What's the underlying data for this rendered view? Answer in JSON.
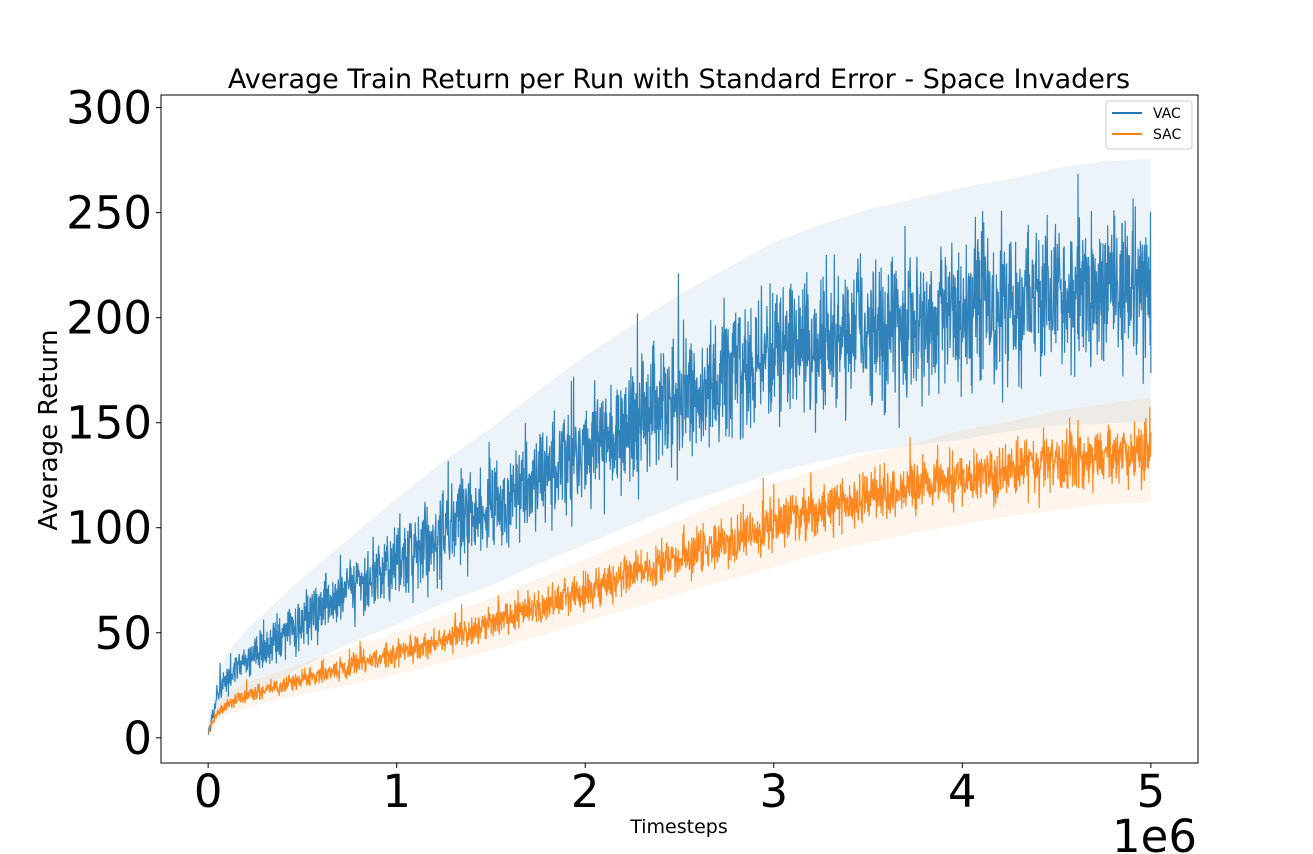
{
  "chart_data": {
    "type": "line",
    "title": "Average Train Return per Run with Standard Error - Space Invaders",
    "xlabel": "Timesteps",
    "ylabel": "Average Return",
    "x_offset_label": "1e6",
    "xlim": [
      -0.25,
      5.25
    ],
    "ylim": [
      -12,
      306
    ],
    "x_ticks": [
      0,
      1,
      2,
      3,
      4,
      5
    ],
    "x_tick_labels": [
      "0",
      "1",
      "2",
      "3",
      "4",
      "5"
    ],
    "y_ticks": [
      0,
      50,
      100,
      150,
      200,
      250,
      300
    ],
    "y_tick_labels": [
      "0",
      "50",
      "100",
      "150",
      "200",
      "250",
      "300"
    ],
    "grid": false,
    "legend_position": "top-right",
    "series": [
      {
        "name": "VAC",
        "color": "#1f77b4",
        "x": [
          0,
          0.05,
          0.1,
          0.2,
          0.3,
          0.5,
          0.75,
          1.0,
          1.25,
          1.5,
          1.75,
          2.0,
          2.25,
          2.5,
          2.75,
          3.0,
          3.25,
          3.5,
          3.75,
          4.0,
          4.25,
          4.5,
          4.75,
          5.0
        ],
        "mean": [
          3,
          20,
          28,
          36,
          42,
          55,
          70,
          84,
          98,
          110,
          124,
          137,
          149,
          161,
          171,
          181,
          188,
          194,
          198,
          202,
          206,
          210,
          212,
          213
        ],
        "spread": [
          2,
          8,
          10,
          12,
          14,
          17,
          20,
          24,
          27,
          30,
          33,
          36,
          38,
          40,
          42,
          44,
          45,
          46,
          47,
          48,
          48,
          49,
          50,
          50
        ]
      },
      {
        "name": "SAC",
        "color": "#ff7f0e",
        "x": [
          0,
          0.05,
          0.1,
          0.2,
          0.3,
          0.5,
          0.75,
          1.0,
          1.25,
          1.5,
          1.75,
          2.0,
          2.25,
          2.5,
          2.75,
          3.0,
          3.25,
          3.5,
          3.75,
          4.0,
          4.25,
          4.5,
          4.75,
          5.0
        ],
        "mean": [
          3,
          12,
          16,
          20,
          23,
          28,
          34,
          40,
          47,
          54,
          62,
          70,
          78,
          86,
          94,
          101,
          108,
          114,
          119,
          124,
          128,
          132,
          135,
          137
        ],
        "spread": [
          1,
          3,
          4,
          5,
          5,
          6,
          7,
          8,
          9,
          10,
          11,
          12,
          13,
          14,
          15,
          16,
          16,
          17,
          17,
          18,
          18,
          19,
          19,
          20
        ]
      }
    ]
  }
}
